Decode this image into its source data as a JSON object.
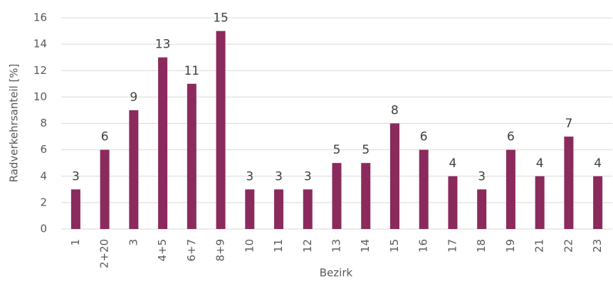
{
  "chart_data": {
    "type": "bar",
    "x_label": "Bezirk",
    "y_label": "Radverkehrsanteil [%]",
    "categories": [
      "1",
      "2+20",
      "3",
      "4+5",
      "6+7",
      "8+9",
      "10",
      "11",
      "12",
      "13",
      "14",
      "15",
      "16",
      "17",
      "18",
      "19",
      "21",
      "22",
      "23"
    ],
    "values": [
      3,
      6,
      9,
      13,
      11,
      15,
      3,
      3,
      3,
      5,
      5,
      8,
      6,
      4,
      3,
      6,
      4,
      7,
      4
    ],
    "color": "#8b2a5c",
    "ylim": [
      0,
      16
    ],
    "yticks": [
      0,
      2,
      4,
      6,
      8,
      10,
      12,
      14,
      16
    ],
    "grid": true
  }
}
